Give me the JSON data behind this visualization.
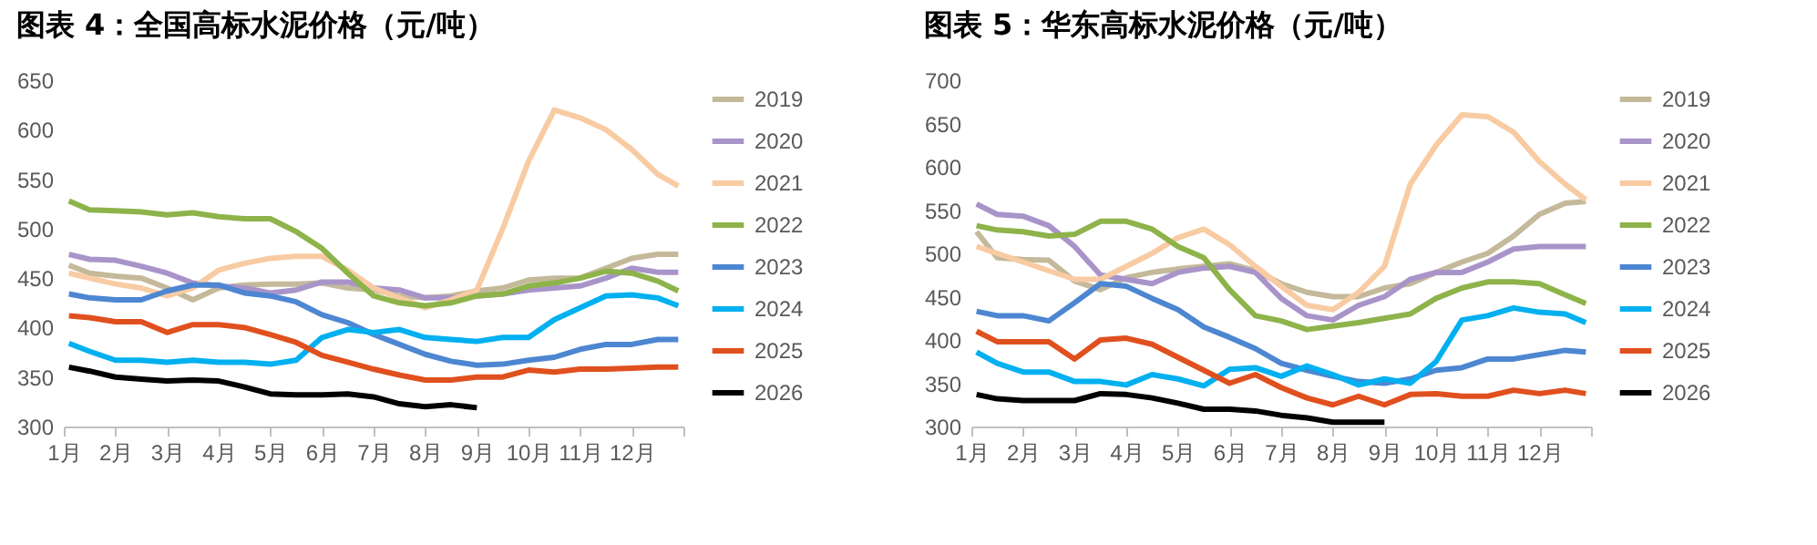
{
  "chart_data": [
    {
      "type": "line",
      "title": "图表 4：全国高标水泥价格（元/吨）",
      "legend": "right",
      "x": [
        1.1,
        1.5,
        2,
        2.5,
        3,
        3.5,
        4,
        4.5,
        5,
        5.5,
        6,
        6.5,
        7,
        7.5,
        8,
        8.5,
        9,
        9.5,
        10,
        10.5,
        11,
        11.5,
        12,
        12.5,
        12.9
      ],
      "xlim": [
        1,
        13
      ],
      "xticks": [
        {
          "value": 1,
          "label": "1月"
        },
        {
          "value": 2,
          "label": "2月"
        },
        {
          "value": 3,
          "label": "3月"
        },
        {
          "value": 4,
          "label": "4月"
        },
        {
          "value": 5,
          "label": "5月"
        },
        {
          "value": 6,
          "label": "6月"
        },
        {
          "value": 7,
          "label": "7月"
        },
        {
          "value": 8,
          "label": "8月"
        },
        {
          "value": 9,
          "label": "9月"
        },
        {
          "value": 10,
          "label": "10月"
        },
        {
          "value": 11,
          "label": "11月"
        },
        {
          "value": 12,
          "label": "12月"
        },
        {
          "value": 13,
          "label": null
        }
      ],
      "ylim": [
        300,
        650
      ],
      "yticks": [
        300,
        350,
        400,
        450,
        500,
        550,
        600,
        650
      ],
      "series": [
        {
          "name": "2019",
          "color": "#c4b99a",
          "values": [
            463,
            455,
            452,
            450,
            440,
            428,
            440,
            443,
            444,
            444,
            445,
            440,
            438,
            432,
            430,
            432,
            437,
            440,
            448,
            450,
            450,
            460,
            470,
            474,
            474
          ]
        },
        {
          "name": "2020",
          "color": "#a994c9",
          "values": [
            474,
            469,
            468,
            462,
            455,
            445,
            442,
            440,
            435,
            438,
            446,
            446,
            440,
            438,
            430,
            430,
            432,
            434,
            438,
            440,
            442,
            450,
            460,
            456,
            456
          ]
        },
        {
          "name": "2021",
          "color": "#f8cba3",
          "values": [
            455,
            450,
            444,
            440,
            432,
            440,
            458,
            465,
            470,
            472,
            472,
            458,
            440,
            430,
            420,
            428,
            438,
            500,
            568,
            620,
            612,
            600,
            580,
            555,
            543
          ]
        },
        {
          "name": "2022",
          "color": "#8db34a",
          "values": [
            528,
            519,
            518,
            517,
            514,
            516,
            512,
            510,
            510,
            497,
            480,
            455,
            432,
            425,
            422,
            425,
            432,
            434,
            442,
            445,
            450,
            457,
            455,
            447,
            437
          ]
        },
        {
          "name": "2023",
          "color": "#4d86d1",
          "values": [
            434,
            430,
            428,
            428,
            437,
            443,
            443,
            435,
            432,
            426,
            413,
            405,
            393,
            383,
            373,
            366,
            362,
            363,
            367,
            370,
            378,
            383,
            383,
            388,
            388
          ]
        },
        {
          "name": "2024",
          "color": "#00b0f0",
          "values": [
            384,
            376,
            367,
            367,
            365,
            367,
            365,
            365,
            363,
            367,
            390,
            398,
            395,
            398,
            390,
            388,
            386,
            390,
            390,
            408,
            420,
            432,
            433,
            430,
            422
          ]
        },
        {
          "name": "2025",
          "color": "#e0501e",
          "values": [
            412,
            410,
            406,
            406,
            395,
            403,
            403,
            400,
            393,
            385,
            372,
            365,
            358,
            352,
            347,
            347,
            350,
            350,
            357,
            355,
            358,
            358,
            359,
            360,
            360
          ]
        },
        {
          "name": "2026",
          "color": "#000000",
          "values": [
            360,
            356,
            350,
            348,
            346,
            347,
            346,
            340,
            333,
            332,
            332,
            333,
            330,
            323,
            320,
            322,
            319,
            null,
            null,
            null,
            null,
            null,
            null,
            null,
            null
          ]
        }
      ]
    },
    {
      "type": "line",
      "title": "图表 5：华东高标水泥价格（元/吨）",
      "legend": "right",
      "x": [
        1.1,
        1.5,
        2,
        2.5,
        3,
        3.5,
        4,
        4.5,
        5,
        5.5,
        6,
        6.5,
        7,
        7.5,
        8,
        8.5,
        9,
        9.5,
        10,
        10.5,
        11,
        11.5,
        12,
        12.5,
        12.9
      ],
      "xlim": [
        1,
        13
      ],
      "xticks": [
        {
          "value": 1,
          "label": "1月"
        },
        {
          "value": 2,
          "label": "2月"
        },
        {
          "value": 3,
          "label": "3月"
        },
        {
          "value": 4,
          "label": "4月"
        },
        {
          "value": 5,
          "label": "5月"
        },
        {
          "value": 6,
          "label": "6月"
        },
        {
          "value": 7,
          "label": "7月"
        },
        {
          "value": 8,
          "label": "8月"
        },
        {
          "value": 9,
          "label": "9月"
        },
        {
          "value": 10,
          "label": "10月"
        },
        {
          "value": 11,
          "label": "11月"
        },
        {
          "value": 12,
          "label": "12月"
        },
        {
          "value": 13,
          "label": null
        }
      ],
      "ylim": [
        300,
        700
      ],
      "yticks": [
        300,
        350,
        400,
        450,
        500,
        550,
        600,
        650,
        700
      ],
      "series": [
        {
          "name": "2019",
          "color": "#c4b99a",
          "values": [
            525,
            495,
            493,
            492,
            468,
            458,
            472,
            478,
            482,
            485,
            488,
            480,
            465,
            455,
            450,
            450,
            460,
            465,
            478,
            490,
            500,
            520,
            545,
            558,
            560
          ]
        },
        {
          "name": "2020",
          "color": "#a994c9",
          "values": [
            557,
            545,
            543,
            532,
            508,
            475,
            470,
            465,
            478,
            483,
            485,
            478,
            448,
            428,
            423,
            440,
            450,
            470,
            478,
            478,
            490,
            505,
            508,
            508,
            508
          ]
        },
        {
          "name": "2021",
          "color": "#f8cba3",
          "values": [
            508,
            500,
            490,
            480,
            470,
            470,
            485,
            500,
            518,
            528,
            510,
            485,
            462,
            440,
            435,
            455,
            485,
            580,
            625,
            660,
            658,
            640,
            606,
            580,
            562
          ]
        },
        {
          "name": "2022",
          "color": "#8db34a",
          "values": [
            532,
            527,
            525,
            520,
            522,
            537,
            537,
            528,
            508,
            495,
            458,
            428,
            422,
            412,
            416,
            420,
            425,
            430,
            448,
            460,
            467,
            467,
            465,
            452,
            442
          ]
        },
        {
          "name": "2023",
          "color": "#4d86d1",
          "values": [
            433,
            428,
            428,
            422,
            443,
            465,
            462,
            448,
            435,
            415,
            403,
            390,
            373,
            365,
            358,
            352,
            350,
            355,
            365,
            368,
            378,
            378,
            383,
            388,
            386
          ]
        },
        {
          "name": "2024",
          "color": "#00b0f0",
          "values": [
            386,
            373,
            363,
            363,
            352,
            352,
            348,
            360,
            355,
            347,
            366,
            368,
            358,
            370,
            360,
            348,
            355,
            350,
            375,
            423,
            428,
            437,
            432,
            430,
            420
          ]
        },
        {
          "name": "2025",
          "color": "#e0501e",
          "values": [
            410,
            398,
            398,
            398,
            378,
            400,
            402,
            395,
            380,
            365,
            350,
            360,
            345,
            333,
            325,
            335,
            325,
            337,
            338,
            335,
            335,
            342,
            338,
            342,
            338
          ]
        },
        {
          "name": "2026",
          "color": "#000000",
          "values": [
            337,
            332,
            330,
            330,
            330,
            338,
            337,
            333,
            327,
            320,
            320,
            318,
            313,
            310,
            305,
            305,
            305,
            null,
            null,
            null,
            null,
            null,
            null,
            null,
            null
          ]
        }
      ]
    }
  ]
}
